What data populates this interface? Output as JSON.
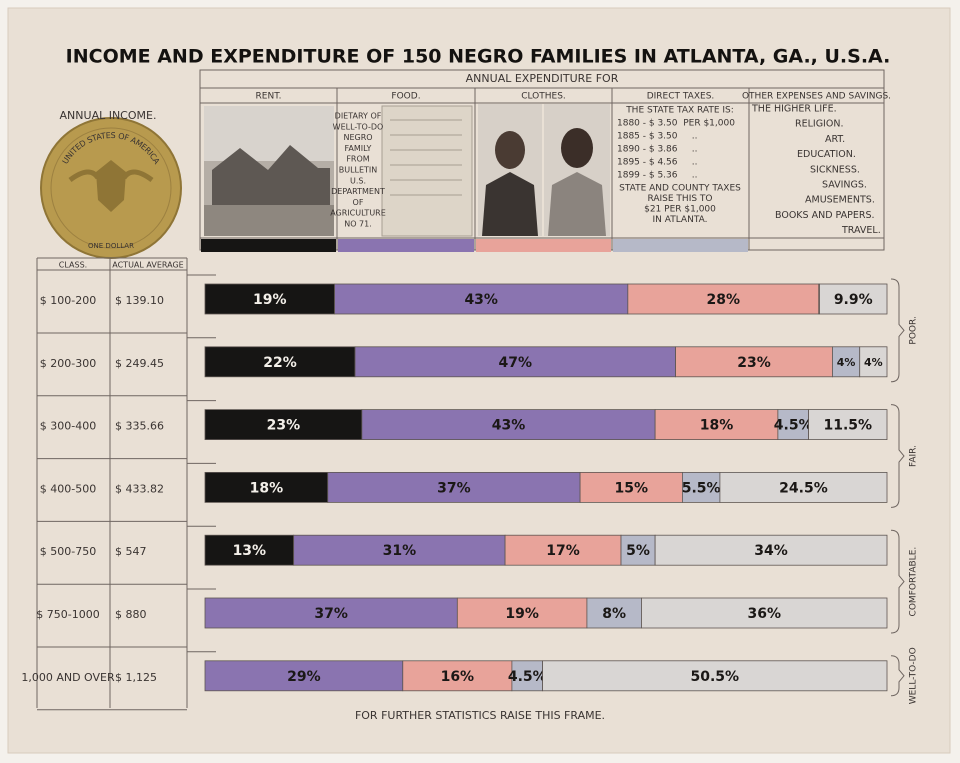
{
  "title": "INCOME AND EXPENDITURE OF 150 NEGRO FAMILIES IN ATLANTA, GA., U.S.A.",
  "income_panel": {
    "title": "ANNUAL INCOME.",
    "coin_top": "UNITED STATES OF AMERICA",
    "coin_bottom": "ONE DOLLAR"
  },
  "expenditure_panel": {
    "title": "ANNUAL EXPENDITURE FOR",
    "food_note": [
      "DIETARY OF",
      "WELL-TO-DO",
      "NEGRO",
      "FAMILY",
      "FROM",
      "BULLETIN",
      "U.S.",
      "DEPARTMENT",
      "OF",
      "AGRICULTURE",
      "NO 71."
    ],
    "tax_note": [
      "THE STATE TAX RATE IS:",
      "1880 - $ 3.50  PER $1,000",
      "1885 - $ 3.50     ..",
      "1890 - $ 3.86     ..",
      "1895 - $ 4.56     ..",
      "1899 - $ 5.36     ..",
      "STATE AND COUNTY TAXES",
      "RAISE THIS TO",
      "$21 PER $1,000",
      "IN ATLANTA."
    ],
    "other_items": [
      "THE HIGHER LIFE.",
      "RELIGION.",
      "ART.",
      "EDUCATION.",
      "SICKNESS.",
      "SAVINGS.",
      "AMUSEMENTS.",
      "BOOKS AND PAPERS.",
      "TRAVEL."
    ]
  },
  "table": {
    "headers": [
      "CLASS.",
      "ACTUAL AVERAGE"
    ],
    "actual_averages": [
      "$ 139.10",
      "$ 249.45",
      "$ 335.66",
      "$ 433.82",
      "$ 547",
      "$ 880",
      "$ 1,125"
    ]
  },
  "chart_data": {
    "type": "bar",
    "orientation": "horizontal",
    "stacked": true,
    "categories": [
      "$ 100-200",
      "$ 200-300",
      "$ 300-400",
      "$ 400-500",
      "$ 500-750",
      "$ 750-1000",
      "1,000 AND OVER"
    ],
    "xlim": [
      0,
      100
    ],
    "series": [
      {
        "name": "RENT.",
        "color": "#161514",
        "values": [
          19,
          22,
          23,
          18,
          13,
          null,
          null
        ],
        "value_labels": [
          "19%",
          "22%",
          "23%",
          "18%",
          "13%",
          null,
          null
        ]
      },
      {
        "name": "FOOD.",
        "color": "#8a74b0",
        "values": [
          43,
          47,
          43,
          37,
          31,
          37,
          29
        ],
        "value_labels": [
          "43%",
          "47%",
          "43%",
          "37%",
          "31%",
          "37%",
          "29%"
        ]
      },
      {
        "name": "CLOTHES.",
        "color": "#e8a39a",
        "values": [
          28,
          23,
          18,
          15,
          17,
          19,
          16
        ],
        "value_labels": [
          "28%",
          "23%",
          "18%",
          "15%",
          "17%",
          "19%",
          "16%"
        ]
      },
      {
        "name": "DIRECT TAXES.",
        "color": "#b6b9c8",
        "values": [
          0.1,
          4,
          4.5,
          5.5,
          5,
          8,
          4.5
        ],
        "value_labels": [
          null,
          "4%",
          "4.5%",
          "5.5%",
          "5%",
          "8%",
          "4.5%"
        ]
      },
      {
        "name": "OTHER EXPENSES AND SAVINGS.",
        "color": "#d9d6d4",
        "values": [
          9.9,
          4,
          11.5,
          24.5,
          34,
          36,
          50.5
        ],
        "value_labels": [
          "9.9%",
          "4%",
          "11.5%",
          "24.5%",
          "34%",
          "36%",
          "50.5%"
        ]
      }
    ],
    "group_labels": [
      "POOR.",
      "FAIR.",
      "COMFORTABLE.",
      "WELL-TO-DO"
    ]
  },
  "footer": "FOR FURTHER STATISTICS RAISE THIS FRAME."
}
